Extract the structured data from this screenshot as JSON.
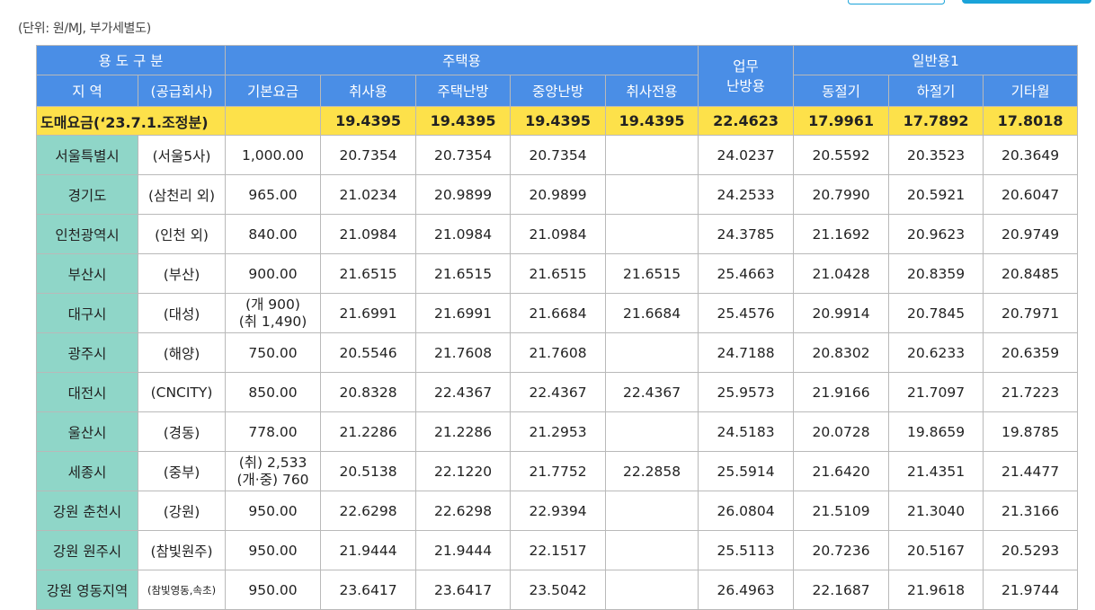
{
  "unit_note": "(단위: 원/MJ, 부가세별도)",
  "headers": {
    "usage_category": "용 도 구 분",
    "residential": "주택용",
    "business_heating": "업무\n난방용",
    "general1": "일반용1",
    "region": "지 역",
    "supplier": "(공급회사)",
    "base_fee": "기본요금",
    "cooking": "취사용",
    "home_heating": "주택난방",
    "central_heating": "중앙난방",
    "cooking_only": "취사전용",
    "winter": "동절기",
    "summer": "하절기",
    "other_season": "기타월"
  },
  "wholesale": {
    "label": "도매요금(‘23.7.1.조정분)",
    "base_fee": "",
    "cooking": "19.4395",
    "home_heating": "19.4395",
    "central_heating": "19.4395",
    "cooking_only": "19.4395",
    "business_heating": "22.4623",
    "winter": "17.9961",
    "summer": "17.7892",
    "other_season": "17.8018"
  },
  "rows": [
    {
      "region": "서울특별시",
      "supplier": "(서울5사)",
      "base_fee": "1,000.00",
      "cooking": "20.7354",
      "home_heating": "20.7354",
      "central_heating": "20.7354",
      "cooking_only": "",
      "business_heating": "24.0237",
      "winter": "20.5592",
      "summer": "20.3523",
      "other_season": "20.3649"
    },
    {
      "region": "경기도",
      "supplier": "(삼천리 외)",
      "base_fee": "965.00",
      "cooking": "21.0234",
      "home_heating": "20.9899",
      "central_heating": "20.9899",
      "cooking_only": "",
      "business_heating": "24.2533",
      "winter": "20.7990",
      "summer": "20.5921",
      "other_season": "20.6047"
    },
    {
      "region": "인천광역시",
      "supplier": "(인천 외)",
      "base_fee": "840.00",
      "cooking": "21.0984",
      "home_heating": "21.0984",
      "central_heating": "21.0984",
      "cooking_only": "",
      "business_heating": "24.3785",
      "winter": "21.1692",
      "summer": "20.9623",
      "other_season": "20.9749"
    },
    {
      "region": "부산시",
      "supplier": "(부산)",
      "base_fee": "900.00",
      "cooking": "21.6515",
      "home_heating": "21.6515",
      "central_heating": "21.6515",
      "cooking_only": "21.6515",
      "business_heating": "25.4663",
      "winter": "21.0428",
      "summer": "20.8359",
      "other_season": "20.8485"
    },
    {
      "region": "대구시",
      "supplier": "(대성)",
      "base_fee_line1": "(개 900)",
      "base_fee_line2": "(취 1,490)",
      "cooking": "21.6991",
      "home_heating": "21.6991",
      "central_heating": "21.6684",
      "cooking_only": "21.6684",
      "business_heating": "25.4576",
      "winter": "20.9914",
      "summer": "20.7845",
      "other_season": "20.7971"
    },
    {
      "region": "광주시",
      "supplier": "(해양)",
      "base_fee": "750.00",
      "cooking": "20.5546",
      "home_heating": "21.7608",
      "central_heating": "21.7608",
      "cooking_only": "",
      "business_heating": "24.7188",
      "winter": "20.8302",
      "summer": "20.6233",
      "other_season": "20.6359"
    },
    {
      "region": "대전시",
      "supplier": "(CNCITY)",
      "base_fee": "850.00",
      "cooking": "20.8328",
      "home_heating": "22.4367",
      "central_heating": "22.4367",
      "cooking_only": "22.4367",
      "business_heating": "25.9573",
      "winter": "21.9166",
      "summer": "21.7097",
      "other_season": "21.7223"
    },
    {
      "region": "울산시",
      "supplier": "(경동)",
      "base_fee": "778.00",
      "cooking": "21.2286",
      "home_heating": "21.2286",
      "central_heating": "21.2953",
      "cooking_only": "",
      "business_heating": "24.5183",
      "winter": "20.0728",
      "summer": "19.8659",
      "other_season": "19.8785"
    },
    {
      "region": "세종시",
      "supplier": "(중부)",
      "base_fee_line1": "(취) 2,533",
      "base_fee_line2": "(개·중) 760",
      "cooking": "20.5138",
      "home_heating": "22.1220",
      "central_heating": "21.7752",
      "cooking_only": "22.2858",
      "business_heating": "25.5914",
      "winter": "21.6420",
      "summer": "21.4351",
      "other_season": "21.4477"
    },
    {
      "region": "강원 춘천시",
      "supplier": "(강원)",
      "base_fee": "950.00",
      "cooking": "22.6298",
      "home_heating": "22.6298",
      "central_heating": "22.9394",
      "cooking_only": "",
      "business_heating": "26.0804",
      "winter": "21.5109",
      "summer": "21.3040",
      "other_season": "21.3166"
    },
    {
      "region": "강원 원주시",
      "supplier": "(참빛원주)",
      "base_fee": "950.00",
      "cooking": "21.9444",
      "home_heating": "21.9444",
      "central_heating": "22.1517",
      "cooking_only": "",
      "business_heating": "25.5113",
      "winter": "20.7236",
      "summer": "20.5167",
      "other_season": "20.5293"
    },
    {
      "region": "강원 영동지역",
      "supplier": "(참빛영동,속초)",
      "base_fee": "950.00",
      "cooking": "23.6417",
      "home_heating": "23.6417",
      "central_heating": "23.5042",
      "cooking_only": "",
      "business_heating": "26.4963",
      "winter": "22.1687",
      "summer": "21.9618",
      "other_season": "21.9744"
    }
  ],
  "colors": {
    "header_bg": "#4a8ee6",
    "wholesale_bg": "#fde14a",
    "region_bg": "#8fd6c8",
    "top_button": "#1aa3d9"
  }
}
